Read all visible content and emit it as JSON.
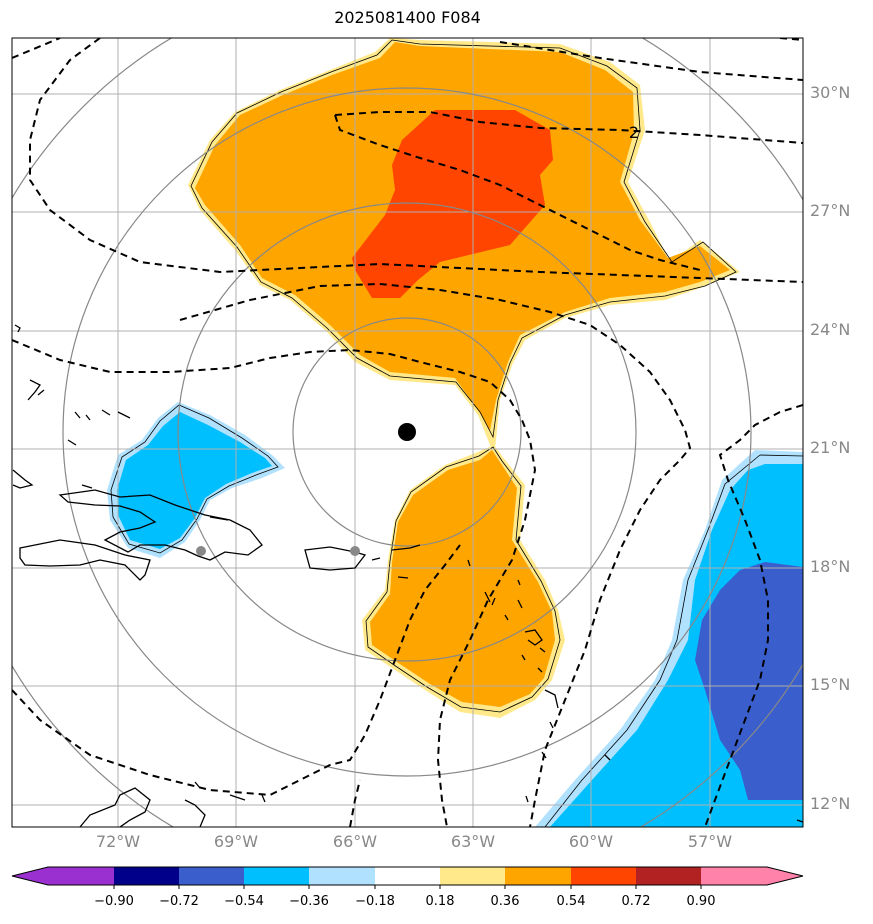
{
  "title": "2025081400 F084",
  "latitude_labels": [
    "30°N",
    "27°N",
    "24°N",
    "21°N",
    "18°N",
    "15°N",
    "12°N"
  ],
  "longitude_labels": [
    "72°W",
    "69°W",
    "66°W",
    "63°W",
    "60°W",
    "57°W"
  ],
  "contour_label": "2",
  "colorbar": {
    "ticks": [
      "−0.90",
      "−0.72",
      "−0.54",
      "−0.36",
      "−0.18",
      "0.18",
      "0.36",
      "0.54",
      "0.72",
      "0.90"
    ],
    "colors": [
      "#9b30d0",
      "#00008b",
      "#3a5fcd",
      "#00bfff",
      "#b0e2ff",
      "#ffffff",
      "#ffe98a",
      "#ffa500",
      "#ff4500",
      "#b22222",
      "#ff82ab"
    ]
  },
  "storm_marker_color": "#000000",
  "city_marker_color": "#888888",
  "range_ring_color": "#888888",
  "gridline_color": "#b0b0b0"
}
